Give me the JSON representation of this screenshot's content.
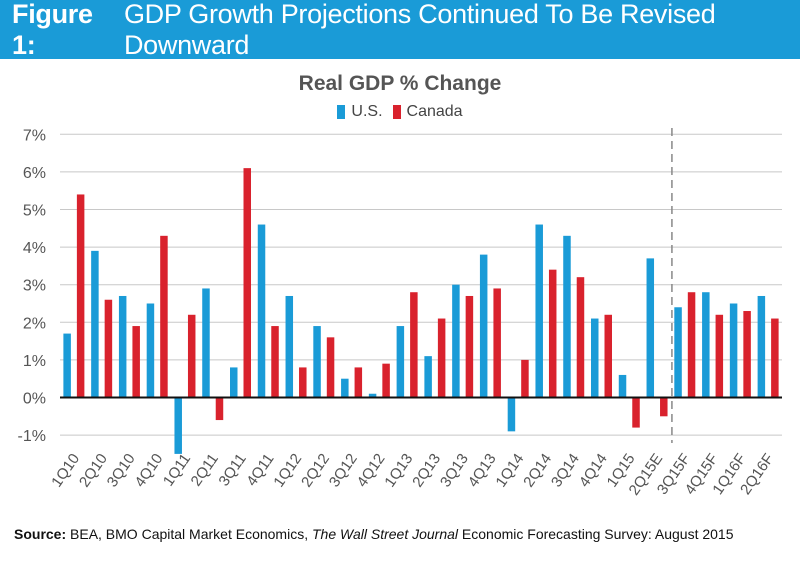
{
  "header": {
    "label": "Figure 1:",
    "title": "GDP Growth Projections Continued To Be Revised Downward"
  },
  "colors": {
    "header_bg": "#1a9bd7",
    "us": "#1a9bd7",
    "canada": "#d9222d",
    "grid": "#c8c8c8",
    "forecast_line": "#888888"
  },
  "chart_data": {
    "type": "bar",
    "title": "Real GDP % Change",
    "xlabel": "",
    "ylabel": "",
    "ylim": [
      -1.5,
      7
    ],
    "yticks": [
      -1,
      0,
      1,
      2,
      3,
      4,
      5,
      6,
      7
    ],
    "ytick_labels": [
      "-1%",
      "0%",
      "1%",
      "2%",
      "3%",
      "4%",
      "5%",
      "6%",
      "7%"
    ],
    "grid": true,
    "legend_position": "top-center",
    "forecast_divider_after": "2Q15E",
    "categories": [
      "1Q10",
      "2Q10",
      "3Q10",
      "4Q10",
      "1Q11",
      "2Q11",
      "3Q11",
      "4Q11",
      "1Q12",
      "2Q12",
      "3Q12",
      "4Q12",
      "1Q13",
      "2Q13",
      "3Q13",
      "4Q13",
      "1Q14",
      "2Q14",
      "3Q14",
      "4Q14",
      "1Q15",
      "2Q15E",
      "3Q15F",
      "4Q15F",
      "1Q16F",
      "2Q16F"
    ],
    "series": [
      {
        "name": "U.S.",
        "color": "#1a9bd7",
        "values": [
          1.7,
          3.9,
          2.7,
          2.5,
          -1.5,
          2.9,
          0.8,
          4.6,
          2.7,
          1.9,
          0.5,
          0.1,
          1.9,
          1.1,
          3.0,
          3.8,
          -0.9,
          4.6,
          4.3,
          2.1,
          0.6,
          3.7,
          2.4,
          2.8,
          2.5,
          2.7
        ]
      },
      {
        "name": "Canada",
        "color": "#d9222d",
        "values": [
          5.4,
          2.6,
          1.9,
          4.3,
          2.2,
          -0.6,
          6.1,
          1.9,
          0.8,
          1.6,
          0.8,
          0.9,
          2.8,
          2.1,
          2.7,
          2.9,
          1.0,
          3.4,
          3.2,
          2.2,
          -0.8,
          -0.5,
          2.8,
          2.2,
          2.3,
          2.1
        ]
      }
    ]
  },
  "source": {
    "label": "Source:",
    "text_before": " BEA, BMO Capital Market Economics, ",
    "italic": "The Wall Street Journal",
    "text_after": " Economic Forecasting Survey: August 2015"
  }
}
